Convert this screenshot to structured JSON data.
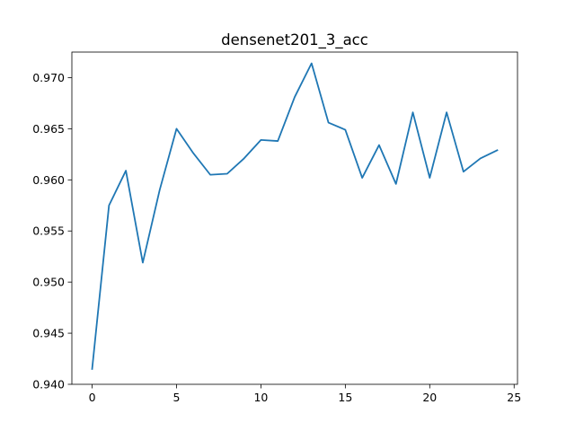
{
  "chart_data": {
    "type": "line",
    "title": "densenet201_3_acc",
    "xlabel": "",
    "ylabel": "",
    "xlim": [
      -1.2,
      25.2
    ],
    "ylim": [
      0.94,
      0.9725
    ],
    "xticks": [
      0,
      5,
      10,
      15,
      20,
      25
    ],
    "xtick_labels": [
      "0",
      "5",
      "10",
      "15",
      "20",
      "25"
    ],
    "yticks": [
      0.94,
      0.945,
      0.95,
      0.955,
      0.96,
      0.965,
      0.97
    ],
    "ytick_labels": [
      "0.940",
      "0.945",
      "0.950",
      "0.955",
      "0.960",
      "0.965",
      "0.970"
    ],
    "grid": false,
    "series": [
      {
        "color": "#1f77b4",
        "x": [
          0,
          1,
          2,
          3,
          4,
          5,
          6,
          7,
          8,
          9,
          10,
          11,
          12,
          13,
          14,
          15,
          16,
          17,
          18,
          19,
          20,
          21,
          22,
          23,
          24
        ],
        "y": [
          0.9415,
          0.9575,
          0.9609,
          0.9519,
          0.959,
          0.965,
          0.9626,
          0.9605,
          0.9606,
          0.9621,
          0.9639,
          0.9638,
          0.9681,
          0.9714,
          0.9656,
          0.9649,
          0.9602,
          0.9634,
          0.9596,
          0.9666,
          0.9602,
          0.9666,
          0.9608,
          0.9621,
          0.9629
        ]
      }
    ]
  }
}
